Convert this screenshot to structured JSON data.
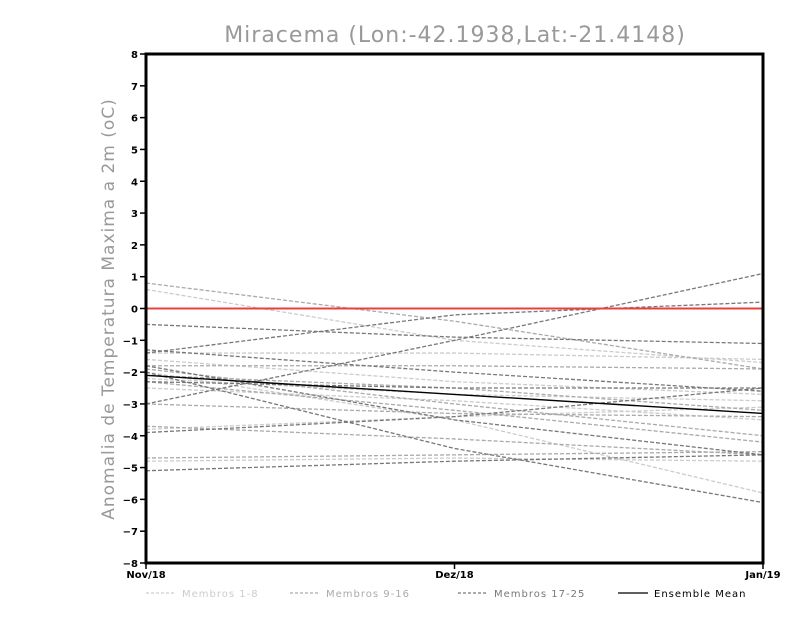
{
  "chart_data": {
    "type": "line",
    "title": "Miracema (Lon:-42.1938,Lat:-21.4148)",
    "ylabel": "Anomalia de Temperatura Maxima a 2m (oC)",
    "xlabel": "",
    "categories": [
      "Nov/18",
      "Dez/18",
      "Jan/19"
    ],
    "ylim": [
      -8,
      8
    ],
    "yticks": [
      -8,
      -7,
      -6,
      -5,
      -4,
      -3,
      -2,
      -1,
      0,
      1,
      2,
      3,
      4,
      5,
      6,
      7,
      8
    ],
    "grid": false,
    "legend_position": "bottom",
    "reference_line": {
      "y": 0,
      "color": "#e8413c"
    },
    "groups": [
      {
        "name": "Membros 1-8",
        "color": "#cccccc",
        "dashed": true
      },
      {
        "name": "Membros 9-16",
        "color": "#aaaaaa",
        "dashed": true
      },
      {
        "name": "Membros 17-25",
        "color": "#777777",
        "dashed": true
      },
      {
        "name": "Ensemble Mean",
        "color": "#000000",
        "dashed": false
      }
    ],
    "series": [
      {
        "group": 0,
        "values": [
          0.6,
          -1.0,
          -1.7
        ]
      },
      {
        "group": 0,
        "values": [
          -1.4,
          -1.4,
          -1.6
        ]
      },
      {
        "group": 0,
        "values": [
          -2.2,
          -2.7,
          -2.9
        ]
      },
      {
        "group": 0,
        "values": [
          -2.0,
          -3.5,
          -5.8
        ]
      },
      {
        "group": 0,
        "values": [
          -3.8,
          -3.4,
          -3.1
        ]
      },
      {
        "group": 0,
        "values": [
          -4.8,
          -4.7,
          -4.8
        ]
      },
      {
        "group": 0,
        "values": [
          -2.5,
          -2.9,
          -3.5
        ]
      },
      {
        "group": 0,
        "values": [
          -1.6,
          -2.3,
          -2.7
        ]
      },
      {
        "group": 1,
        "values": [
          0.8,
          -0.4,
          -1.9
        ]
      },
      {
        "group": 1,
        "values": [
          -1.8,
          -1.8,
          -1.9
        ]
      },
      {
        "group": 1,
        "values": [
          -2.3,
          -3.2,
          -4.2
        ]
      },
      {
        "group": 1,
        "values": [
          -3.7,
          -4.1,
          -4.6
        ]
      },
      {
        "group": 1,
        "values": [
          -2.1,
          -2.5,
          -3.2
        ]
      },
      {
        "group": 1,
        "values": [
          -4.7,
          -4.6,
          -4.5
        ]
      },
      {
        "group": 1,
        "values": [
          -1.9,
          -3.0,
          -4.0
        ]
      },
      {
        "group": 1,
        "values": [
          -3.0,
          -3.3,
          -3.4
        ]
      },
      {
        "group": 2,
        "values": [
          -3.0,
          -1.0,
          1.1
        ]
      },
      {
        "group": 2,
        "values": [
          -1.4,
          -0.2,
          0.2
        ]
      },
      {
        "group": 2,
        "values": [
          -0.5,
          -0.9,
          -1.1
        ]
      },
      {
        "group": 2,
        "values": [
          -1.3,
          -2.0,
          -2.6
        ]
      },
      {
        "group": 2,
        "values": [
          -1.8,
          -3.5,
          -4.6
        ]
      },
      {
        "group": 2,
        "values": [
          -2.0,
          -4.4,
          -6.1
        ]
      },
      {
        "group": 2,
        "values": [
          -5.1,
          -4.8,
          -4.6
        ]
      },
      {
        "group": 2,
        "values": [
          -3.9,
          -3.4,
          -2.5
        ]
      },
      {
        "group": 2,
        "values": [
          -2.3,
          -2.5,
          -2.5
        ]
      },
      {
        "group": 3,
        "values": [
          -2.1,
          -2.7,
          -3.3
        ]
      }
    ]
  }
}
